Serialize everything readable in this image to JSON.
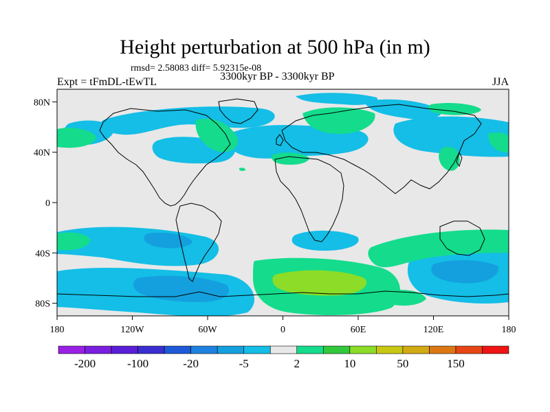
{
  "figure": {
    "title": "Height perturbation at 500 hPa (in m)",
    "stats": "rmsd= 2.58083 diff= 5.92315e-08",
    "expt": "Expt = tFmDL-tEwTL",
    "period": "3300kyr BP - 3300kyr BP",
    "season": "JJA"
  },
  "axes": {
    "lat_ticks": [
      {
        "lat": 80,
        "label": "80N"
      },
      {
        "lat": 40,
        "label": "40N"
      },
      {
        "lat": 0,
        "label": "0"
      },
      {
        "lat": -40,
        "label": "40S"
      },
      {
        "lat": -80,
        "label": "80S"
      }
    ],
    "lon_ticks": [
      {
        "lon": -180,
        "label": "180"
      },
      {
        "lon": -120,
        "label": "120W"
      },
      {
        "lon": -60,
        "label": "60W"
      },
      {
        "lon": 0,
        "label": "0"
      },
      {
        "lon": 60,
        "label": "60E"
      },
      {
        "lon": 120,
        "label": "120E"
      },
      {
        "lon": 180,
        "label": "180"
      }
    ]
  },
  "colorbar": {
    "colors": [
      "#9a20e6",
      "#7a1ee0",
      "#5a1ed8",
      "#3a2ed0",
      "#1e5ad8",
      "#1e82e0",
      "#14a0de",
      "#14bee6",
      "#e8e8e8",
      "#14dc8c",
      "#32c83c",
      "#8cdc28",
      "#c8c814",
      "#d2aa14",
      "#dc7814",
      "#e64614",
      "#f01414"
    ],
    "labels": [
      {
        "index": 1,
        "text": "-200"
      },
      {
        "index": 3,
        "text": "-100"
      },
      {
        "index": 5,
        "text": "-20"
      },
      {
        "index": 7,
        "text": "-5"
      },
      {
        "index": 9,
        "text": "2"
      },
      {
        "index": 11,
        "text": "10"
      },
      {
        "index": 13,
        "text": "50"
      },
      {
        "index": 15,
        "text": "150"
      }
    ]
  },
  "palette": {
    "ocean_bg": "#e8e8e8",
    "light_blue": "#14bee6",
    "mid_blue": "#14a0de",
    "green": "#14dc8c",
    "yellow_green": "#8cdc28"
  }
}
